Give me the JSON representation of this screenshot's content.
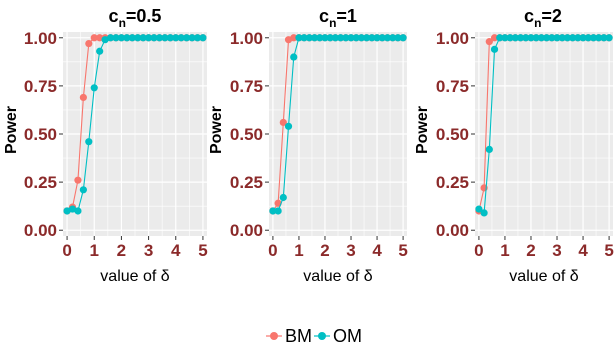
{
  "chart_data": {
    "legend": {
      "position": "bottom",
      "entries": [
        {
          "label": "BM",
          "color": "#F8766D"
        },
        {
          "label": "OM",
          "color": "#00BFC4"
        }
      ]
    },
    "panels": [
      {
        "type": "line",
        "title_base": "c",
        "title_sub": "n",
        "title_tail": "=0.5",
        "xlabel": "value of δ",
        "ylabel": "Power",
        "xlim": [
          -0.15,
          5.15
        ],
        "ylim": [
          -0.03,
          1.03
        ],
        "xticks": [
          0,
          1,
          2,
          3,
          4,
          5
        ],
        "yticks": [
          "0.00",
          "0.25",
          "0.50",
          "0.75",
          "1.00"
        ],
        "grid": true,
        "series": [
          {
            "name": "BM",
            "color": "#F8766D",
            "x": [
              0,
              0.2,
              0.4,
              0.6,
              0.8,
              1.0,
              1.2,
              1.4,
              1.6,
              1.8,
              2.0,
              2.2,
              2.4,
              2.6,
              2.8,
              3.0,
              3.2,
              3.4,
              3.6,
              3.8,
              4.0,
              4.2,
              4.4,
              4.6,
              4.8,
              5.0
            ],
            "y": [
              0.1,
              0.12,
              0.26,
              0.69,
              0.97,
              1.0,
              1.0,
              1.0,
              1.0,
              1.0,
              1.0,
              1.0,
              1.0,
              1.0,
              1.0,
              1.0,
              1.0,
              1.0,
              1.0,
              1.0,
              1.0,
              1.0,
              1.0,
              1.0,
              1.0,
              1.0
            ]
          },
          {
            "name": "OM",
            "color": "#00BFC4",
            "x": [
              0,
              0.2,
              0.4,
              0.6,
              0.8,
              1.0,
              1.2,
              1.4,
              1.6,
              1.8,
              2.0,
              2.2,
              2.4,
              2.6,
              2.8,
              3.0,
              3.2,
              3.4,
              3.6,
              3.8,
              4.0,
              4.2,
              4.4,
              4.6,
              4.8,
              5.0
            ],
            "y": [
              0.1,
              0.11,
              0.1,
              0.21,
              0.46,
              0.74,
              0.93,
              0.99,
              1.0,
              1.0,
              1.0,
              1.0,
              1.0,
              1.0,
              1.0,
              1.0,
              1.0,
              1.0,
              1.0,
              1.0,
              1.0,
              1.0,
              1.0,
              1.0,
              1.0,
              1.0
            ]
          }
        ]
      },
      {
        "type": "line",
        "title_base": "c",
        "title_sub": "n",
        "title_tail": "=1",
        "xlabel": "value of δ",
        "ylabel": "Power",
        "xlim": [
          -0.15,
          5.15
        ],
        "ylim": [
          -0.03,
          1.03
        ],
        "xticks": [
          0,
          1,
          2,
          3,
          4,
          5
        ],
        "yticks": [
          "0.00",
          "0.25",
          "0.50",
          "0.75",
          "1.00"
        ],
        "grid": true,
        "series": [
          {
            "name": "BM",
            "color": "#F8766D",
            "x": [
              0,
              0.2,
              0.4,
              0.6,
              0.8,
              1.0,
              1.2,
              1.4,
              1.6,
              1.8,
              2.0,
              2.2,
              2.4,
              2.6,
              2.8,
              3.0,
              3.2,
              3.4,
              3.6,
              3.8,
              4.0,
              4.2,
              4.4,
              4.6,
              4.8,
              5.0
            ],
            "y": [
              0.1,
              0.14,
              0.56,
              0.99,
              1.0,
              1.0,
              1.0,
              1.0,
              1.0,
              1.0,
              1.0,
              1.0,
              1.0,
              1.0,
              1.0,
              1.0,
              1.0,
              1.0,
              1.0,
              1.0,
              1.0,
              1.0,
              1.0,
              1.0,
              1.0,
              1.0
            ]
          },
          {
            "name": "OM",
            "color": "#00BFC4",
            "x": [
              0,
              0.2,
              0.4,
              0.6,
              0.8,
              1.0,
              1.2,
              1.4,
              1.6,
              1.8,
              2.0,
              2.2,
              2.4,
              2.6,
              2.8,
              3.0,
              3.2,
              3.4,
              3.6,
              3.8,
              4.0,
              4.2,
              4.4,
              4.6,
              4.8,
              5.0
            ],
            "y": [
              0.1,
              0.1,
              0.17,
              0.54,
              0.9,
              1.0,
              1.0,
              1.0,
              1.0,
              1.0,
              1.0,
              1.0,
              1.0,
              1.0,
              1.0,
              1.0,
              1.0,
              1.0,
              1.0,
              1.0,
              1.0,
              1.0,
              1.0,
              1.0,
              1.0,
              1.0
            ]
          }
        ]
      },
      {
        "type": "line",
        "title_base": "c",
        "title_sub": "n",
        "title_tail": "=2",
        "xlabel": "value of δ",
        "ylabel": "Power",
        "xlim": [
          -0.15,
          5.15
        ],
        "ylim": [
          -0.03,
          1.03
        ],
        "xticks": [
          0,
          1,
          2,
          3,
          4,
          5
        ],
        "yticks": [
          "0.00",
          "0.25",
          "0.50",
          "0.75",
          "1.00"
        ],
        "grid": true,
        "series": [
          {
            "name": "BM",
            "color": "#F8766D",
            "x": [
              0,
              0.2,
              0.4,
              0.6,
              0.8,
              1.0,
              1.2,
              1.4,
              1.6,
              1.8,
              2.0,
              2.2,
              2.4,
              2.6,
              2.8,
              3.0,
              3.2,
              3.4,
              3.6,
              3.8,
              4.0,
              4.2,
              4.4,
              4.6,
              4.8,
              5.0
            ],
            "y": [
              0.1,
              0.22,
              0.98,
              1.0,
              1.0,
              1.0,
              1.0,
              1.0,
              1.0,
              1.0,
              1.0,
              1.0,
              1.0,
              1.0,
              1.0,
              1.0,
              1.0,
              1.0,
              1.0,
              1.0,
              1.0,
              1.0,
              1.0,
              1.0,
              1.0,
              1.0
            ]
          },
          {
            "name": "OM",
            "color": "#00BFC4",
            "x": [
              0,
              0.2,
              0.4,
              0.6,
              0.8,
              1.0,
              1.2,
              1.4,
              1.6,
              1.8,
              2.0,
              2.2,
              2.4,
              2.6,
              2.8,
              3.0,
              3.2,
              3.4,
              3.6,
              3.8,
              4.0,
              4.2,
              4.4,
              4.6,
              4.8,
              5.0
            ],
            "y": [
              0.11,
              0.09,
              0.42,
              0.94,
              1.0,
              1.0,
              1.0,
              1.0,
              1.0,
              1.0,
              1.0,
              1.0,
              1.0,
              1.0,
              1.0,
              1.0,
              1.0,
              1.0,
              1.0,
              1.0,
              1.0,
              1.0,
              1.0,
              1.0,
              1.0,
              1.0
            ]
          }
        ]
      }
    ]
  }
}
